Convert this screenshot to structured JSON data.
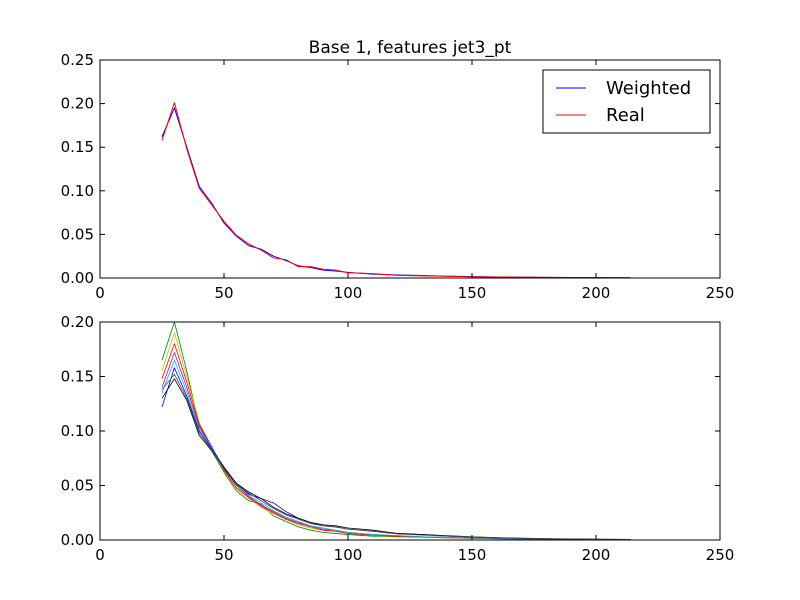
{
  "chart_data": [
    {
      "type": "line",
      "title": "Base 1, features jet3_pt",
      "xlim": [
        0,
        250
      ],
      "ylim": [
        0,
        0.25
      ],
      "xticks": [
        {
          "value": 0,
          "label": "0"
        },
        {
          "value": 50,
          "label": "50"
        },
        {
          "value": 100,
          "label": "100"
        },
        {
          "value": 150,
          "label": "150"
        },
        {
          "value": 200,
          "label": "200"
        },
        {
          "value": 250,
          "label": "250"
        }
      ],
      "yticks": [
        {
          "value": 0,
          "label": "0.00"
        },
        {
          "value": 0.05,
          "label": "0.05"
        },
        {
          "value": 0.1,
          "label": "0.10"
        },
        {
          "value": 0.15,
          "label": "0.15"
        },
        {
          "value": 0.2,
          "label": "0.20"
        },
        {
          "value": 0.25,
          "label": "0.25"
        }
      ],
      "grid": false,
      "legend": "top-right",
      "x": [
        25,
        30,
        35,
        40,
        45,
        50,
        55,
        60,
        65,
        70,
        75,
        80,
        85,
        90,
        95,
        100,
        110,
        120,
        130,
        140,
        150,
        160,
        170,
        180,
        190,
        200,
        214
      ],
      "series": [
        {
          "name": "Weighted",
          "color": "#0000ff",
          "values": [
            0.162,
            0.195,
            0.15,
            0.105,
            0.086,
            0.063,
            0.048,
            0.037,
            0.033,
            0.025,
            0.02,
            0.014,
            0.012,
            0.009,
            0.008,
            0.0065,
            0.0045,
            0.0035,
            0.0028,
            0.002,
            0.0016,
            0.0012,
            0.0009,
            0.0007,
            0.0005,
            0.0004,
            0.0003
          ]
        },
        {
          "name": "Real",
          "color": "#ff0000",
          "values": [
            0.158,
            0.201,
            0.148,
            0.103,
            0.084,
            0.065,
            0.049,
            0.039,
            0.032,
            0.023,
            0.021,
            0.013,
            0.013,
            0.01,
            0.009,
            0.006,
            0.005,
            0.003,
            0.0025,
            0.002,
            0.0015,
            0.0012,
            0.001,
            0.0007,
            0.0005,
            0.0004,
            0.0003
          ]
        }
      ]
    },
    {
      "type": "line",
      "xlim": [
        0,
        250
      ],
      "ylim": [
        0,
        0.2
      ],
      "xticks": [
        {
          "value": 0,
          "label": "0"
        },
        {
          "value": 50,
          "label": "50"
        },
        {
          "value": 100,
          "label": "100"
        },
        {
          "value": 150,
          "label": "150"
        },
        {
          "value": 200,
          "label": "200"
        },
        {
          "value": 250,
          "label": "250"
        }
      ],
      "yticks": [
        {
          "value": 0,
          "label": "0.00"
        },
        {
          "value": 0.05,
          "label": "0.05"
        },
        {
          "value": 0.1,
          "label": "0.10"
        },
        {
          "value": 0.15,
          "label": "0.15"
        },
        {
          "value": 0.2,
          "label": "0.20"
        }
      ],
      "grid": false,
      "x": [
        25,
        30,
        35,
        40,
        45,
        50,
        55,
        60,
        65,
        70,
        75,
        80,
        85,
        90,
        95,
        100,
        110,
        120,
        130,
        140,
        150,
        160,
        170,
        180,
        190,
        200,
        214
      ],
      "series": [
        {
          "color": "#008000",
          "values": [
            0.165,
            0.2,
            0.155,
            0.105,
            0.082,
            0.062,
            0.045,
            0.036,
            0.033,
            0.022,
            0.017,
            0.012,
            0.009,
            0.007,
            0.006,
            0.005,
            0.0035,
            0.003,
            0.0025,
            0.002,
            0.0015,
            0.0012,
            0.001,
            0.0008,
            0.0006,
            0.0005,
            0.0004
          ]
        },
        {
          "color": "#bfbf00",
          "values": [
            0.155,
            0.19,
            0.15,
            0.108,
            0.085,
            0.063,
            0.047,
            0.038,
            0.03,
            0.024,
            0.019,
            0.014,
            0.011,
            0.009,
            0.008,
            0.006,
            0.004,
            0.0035,
            0.0028,
            0.002,
            0.0016,
            0.0012,
            0.001,
            0.0008,
            0.0006,
            0.0005,
            0.0004
          ]
        },
        {
          "color": "#ff0000",
          "values": [
            0.148,
            0.18,
            0.145,
            0.106,
            0.086,
            0.064,
            0.048,
            0.039,
            0.031,
            0.025,
            0.019,
            0.015,
            0.012,
            0.009,
            0.008,
            0.006,
            0.0045,
            0.0035,
            0.0028,
            0.0022,
            0.0017,
            0.0013,
            0.001,
            0.0008,
            0.0006,
            0.0005,
            0.0004
          ]
        },
        {
          "color": "#bf00bf",
          "values": [
            0.14,
            0.172,
            0.14,
            0.104,
            0.086,
            0.065,
            0.05,
            0.04,
            0.032,
            0.026,
            0.02,
            0.016,
            0.013,
            0.01,
            0.009,
            0.007,
            0.005,
            0.004,
            0.003,
            0.0023,
            0.0018,
            0.0014,
            0.0011,
            0.0009,
            0.0007,
            0.0005,
            0.0004
          ]
        },
        {
          "color": "#00bfbf",
          "values": [
            0.135,
            0.165,
            0.136,
            0.102,
            0.085,
            0.066,
            0.051,
            0.041,
            0.034,
            0.027,
            0.021,
            0.017,
            0.013,
            0.011,
            0.009,
            0.007,
            0.005,
            0.004,
            0.003,
            0.0024,
            0.0019,
            0.0015,
            0.0012,
            0.0009,
            0.0007,
            0.0005,
            0.0004
          ]
        },
        {
          "color": "#0000ff",
          "values": [
            0.122,
            0.158,
            0.132,
            0.1,
            0.084,
            0.067,
            0.052,
            0.042,
            0.038,
            0.034,
            0.026,
            0.02,
            0.016,
            0.013,
            0.012,
            0.01,
            0.008,
            0.006,
            0.005,
            0.0035,
            0.0025,
            0.002,
            0.0015,
            0.001,
            0.0008,
            0.0006,
            0.0004
          ]
        },
        {
          "color": "#000000",
          "values": [
            0.13,
            0.148,
            0.128,
            0.096,
            0.082,
            0.066,
            0.052,
            0.044,
            0.038,
            0.03,
            0.024,
            0.02,
            0.016,
            0.014,
            0.013,
            0.011,
            0.009,
            0.006,
            0.005,
            0.004,
            0.003,
            0.0022,
            0.0017,
            0.0012,
            0.001,
            0.0008,
            0.0005
          ]
        },
        {
          "color": "#4d4d4d",
          "values": [
            0.138,
            0.152,
            0.13,
            0.098,
            0.083,
            0.065,
            0.051,
            0.043,
            0.036,
            0.029,
            0.023,
            0.019,
            0.015,
            0.013,
            0.012,
            0.01,
            0.008,
            0.0055,
            0.0045,
            0.0036,
            0.0028,
            0.002,
            0.0015,
            0.0011,
            0.0009,
            0.0007,
            0.0005
          ]
        }
      ]
    }
  ]
}
